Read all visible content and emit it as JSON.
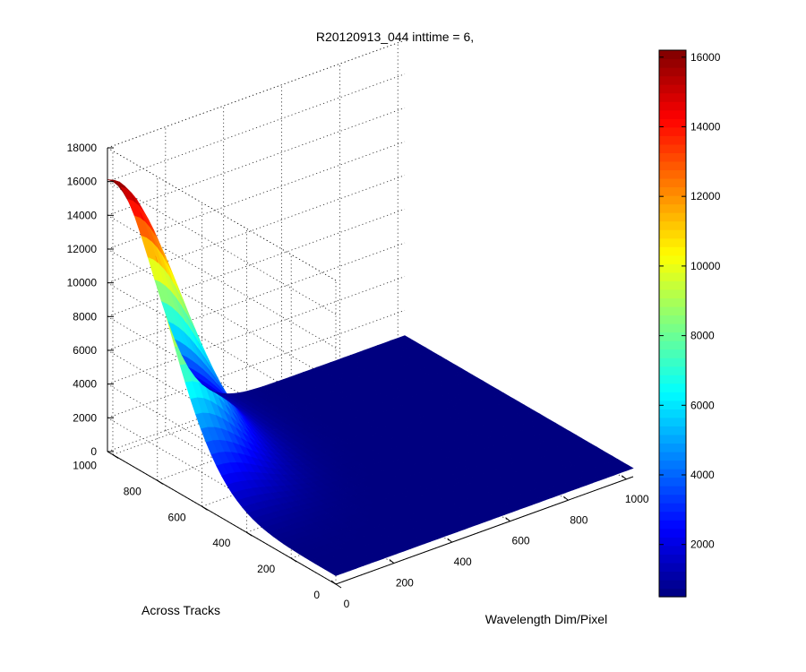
{
  "chart_data": {
    "type": "surface3d",
    "title": "R20120913_044 inttime = 6,",
    "xlabel": "Wavelength Dim/Pixel",
    "ylabel": "Across Tracks",
    "zlabel": "",
    "xlim": [
      0,
      1024
    ],
    "ylim": [
      0,
      1024
    ],
    "zlim": [
      0,
      18000
    ],
    "x_ticks": [
      "0",
      "200",
      "400",
      "600",
      "800",
      "1000"
    ],
    "y_ticks": [
      "0",
      "200",
      "400",
      "600",
      "800",
      "1000"
    ],
    "z_ticks": [
      "0",
      "2000",
      "4000",
      "6000",
      "8000",
      "10000",
      "12000",
      "14000",
      "16000",
      "18000"
    ],
    "grid": true,
    "colormap": "jet",
    "peak": {
      "x": 0,
      "y": 1000,
      "z": 16200
    },
    "floor_value": 500,
    "colorbar": {
      "range": [
        500,
        16200
      ],
      "ticks": [
        "2000",
        "4000",
        "6000",
        "8000",
        "10000",
        "12000",
        "14000",
        "16000"
      ],
      "low_color": "#00008f",
      "high_color": "#800000"
    }
  }
}
